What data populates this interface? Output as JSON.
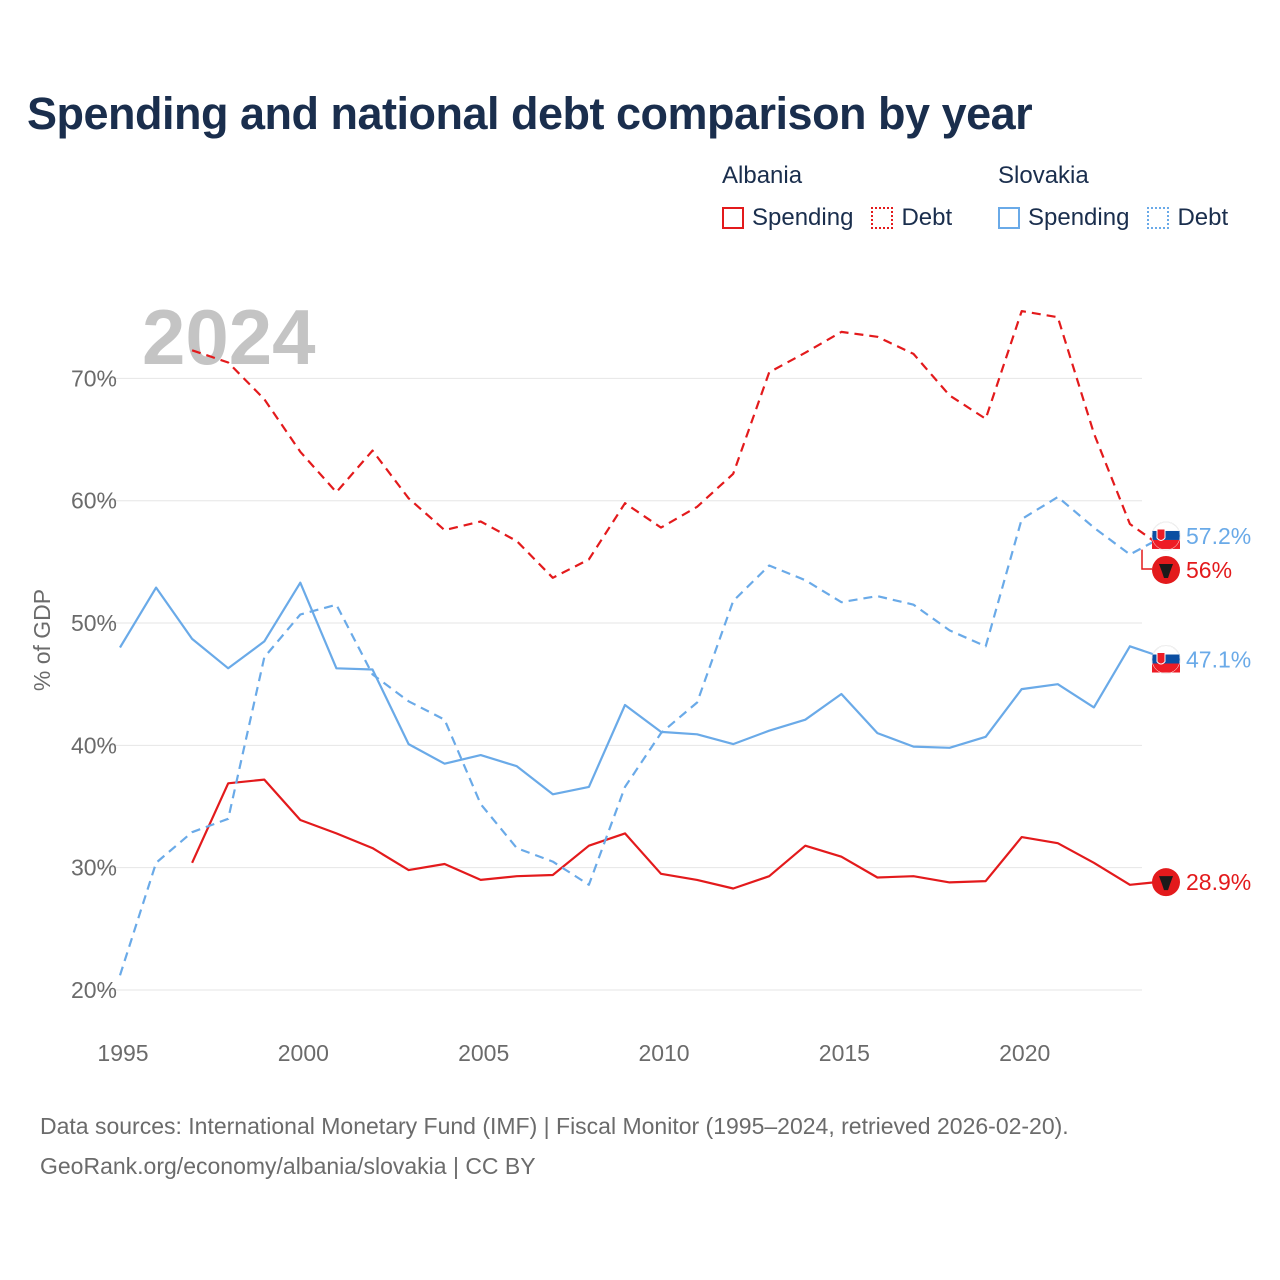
{
  "title": "Spending and national debt comparison by year",
  "legend": {
    "albania": {
      "country": "Albania",
      "spending": "Spending",
      "debt": "Debt"
    },
    "slovakia": {
      "country": "Slovakia",
      "spending": "Spending",
      "debt": "Debt"
    }
  },
  "footer": {
    "line1": "Data sources: International Monetary Fund (IMF) | Fiscal Monitor (1995–2024, retrieved 2026-02-20).",
    "line2": "GeoRank.org/economy/albania/slovakia | CC BY"
  },
  "colors": {
    "albania": "#e31a1c",
    "slovakia": "#6aaae8",
    "grid": "#e6e6e6",
    "title": "#1a2e4d"
  },
  "chart_data": {
    "type": "line",
    "title": "Spending and national debt comparison by year",
    "ylabel": "% of GDP",
    "xlabel": "",
    "year_watermark": "2024",
    "xlim": [
      1995,
      2024
    ],
    "ylim": [
      20,
      76
    ],
    "x_ticks": [
      1995,
      2000,
      2005,
      2010,
      2015,
      2020
    ],
    "y_ticks": [
      20,
      30,
      40,
      50,
      60,
      70
    ],
    "y_tick_labels": [
      "20%",
      "30%",
      "40%",
      "50%",
      "60%",
      "70%"
    ],
    "grid": true,
    "series": [
      {
        "name": "Albania Spending",
        "country": "albania",
        "style": "solid",
        "x": [
          1997,
          1998,
          1999,
          2000,
          2001,
          2002,
          2003,
          2004,
          2005,
          2006,
          2007,
          2008,
          2009,
          2010,
          2011,
          2012,
          2013,
          2014,
          2015,
          2016,
          2017,
          2018,
          2019,
          2020,
          2021,
          2022,
          2023,
          2024
        ],
        "values": [
          30.4,
          36.9,
          37.2,
          33.9,
          32.8,
          31.6,
          29.8,
          30.3,
          29.0,
          29.3,
          29.4,
          31.8,
          32.8,
          29.5,
          29.0,
          28.3,
          29.3,
          31.8,
          30.9,
          29.2,
          29.3,
          28.8,
          28.9,
          32.5,
          32.0,
          30.4,
          28.6,
          28.9
        ],
        "end_label": "28.9%"
      },
      {
        "name": "Albania Debt",
        "country": "albania",
        "style": "dashed",
        "x": [
          1997,
          1998,
          1999,
          2000,
          2001,
          2002,
          2003,
          2004,
          2005,
          2006,
          2007,
          2008,
          2009,
          2010,
          2011,
          2012,
          2013,
          2014,
          2015,
          2016,
          2017,
          2018,
          2019,
          2020,
          2021,
          2022,
          2023,
          2024
        ],
        "values": [
          72.3,
          71.3,
          68.3,
          64.0,
          60.7,
          64.1,
          60.2,
          57.6,
          58.3,
          56.7,
          53.7,
          55.2,
          59.8,
          57.8,
          59.5,
          62.2,
          70.5,
          72.1,
          73.8,
          73.4,
          72.0,
          68.6,
          66.7,
          75.5,
          75.0,
          65.5,
          58.1,
          56.0
        ],
        "end_label": "56%"
      },
      {
        "name": "Slovakia Spending",
        "country": "slovakia",
        "style": "solid",
        "x": [
          1995,
          1996,
          1997,
          1998,
          1999,
          2000,
          2001,
          2002,
          2003,
          2004,
          2005,
          2006,
          2007,
          2008,
          2009,
          2010,
          2011,
          2012,
          2013,
          2014,
          2015,
          2016,
          2017,
          2018,
          2019,
          2020,
          2021,
          2022,
          2023,
          2024
        ],
        "values": [
          48.0,
          52.9,
          48.7,
          46.3,
          48.5,
          53.3,
          46.3,
          46.2,
          40.1,
          38.5,
          39.2,
          38.3,
          36.0,
          36.6,
          43.3,
          41.1,
          40.9,
          40.1,
          41.2,
          42.1,
          44.2,
          41.0,
          39.9,
          39.8,
          40.7,
          44.6,
          45.0,
          43.1,
          48.1,
          47.1
        ],
        "end_label": "47.1%"
      },
      {
        "name": "Slovakia Debt",
        "country": "slovakia",
        "style": "dashed",
        "x": [
          1995,
          1996,
          1997,
          1998,
          1999,
          2000,
          2001,
          2002,
          2003,
          2004,
          2005,
          2006,
          2007,
          2008,
          2009,
          2010,
          2011,
          2012,
          2013,
          2014,
          2015,
          2016,
          2017,
          2018,
          2019,
          2020,
          2021,
          2022,
          2023,
          2024
        ],
        "values": [
          21.2,
          30.4,
          32.9,
          34.0,
          47.2,
          50.7,
          51.5,
          45.8,
          43.6,
          42.1,
          35.2,
          31.6,
          30.5,
          28.6,
          36.6,
          41.0,
          43.5,
          51.8,
          54.7,
          53.5,
          51.7,
          52.2,
          51.5,
          49.4,
          48.1,
          58.5,
          60.3,
          57.8,
          55.6,
          57.2
        ],
        "end_label": "57.2%"
      }
    ]
  }
}
